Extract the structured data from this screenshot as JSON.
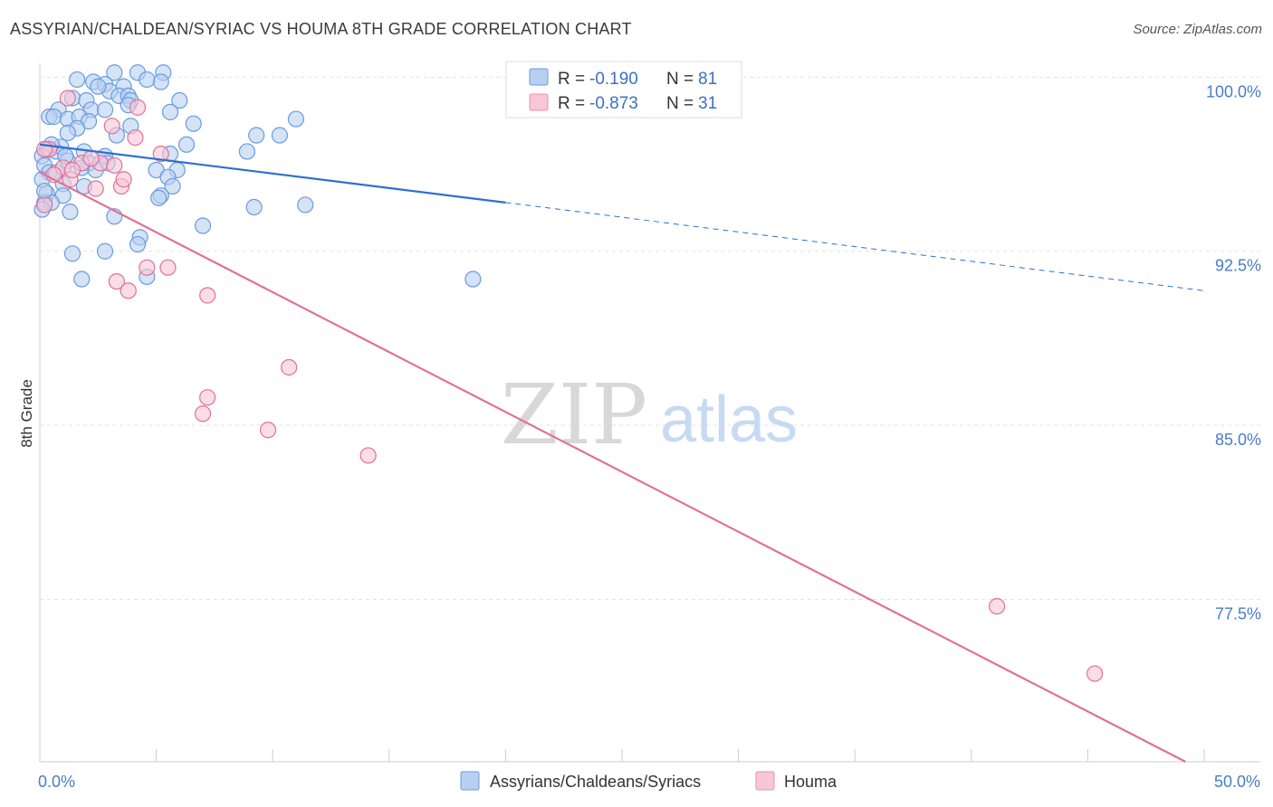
{
  "title": "ASSYRIAN/CHALDEAN/SYRIAC VS HOUMA 8TH GRADE CORRELATION CHART",
  "source": "Source: ZipAtlas.com",
  "watermark": {
    "zip": "ZIP",
    "atlas": "atlas"
  },
  "legend": {
    "rows": [
      {
        "r_label": "R =",
        "r_value": "-0.190",
        "n_label": "N =",
        "n_value": "81",
        "fill": "#b8d0f0",
        "stroke": "#6a9ae0"
      },
      {
        "r_label": "R =",
        "r_value": "-0.873",
        "n_label": "N =",
        "n_value": "31",
        "fill": "#f8c6d6",
        "stroke": "#e890b0"
      }
    ]
  },
  "bottom_legend": [
    {
      "label": "Assyrians/Chaldeans/Syriacs",
      "fill": "#b8d0f0",
      "stroke": "#6a9ae0"
    },
    {
      "label": "Houma",
      "fill": "#f8c6d6",
      "stroke": "#e890b0"
    }
  ],
  "chart_data": {
    "type": "scatter",
    "ylabel": "8th Grade",
    "xlim": [
      0,
      50
    ],
    "ylim": [
      70.5,
      100.6
    ],
    "x_tick_labels": [
      {
        "value": 0,
        "label": "0.0%"
      },
      {
        "value": 50,
        "label": "50.0%"
      }
    ],
    "y_tick_labels": [
      {
        "value": 100,
        "label": "100.0%"
      },
      {
        "value": 92.5,
        "label": "92.5%"
      },
      {
        "value": 85,
        "label": "85.0%"
      },
      {
        "value": 77.5,
        "label": "77.5%"
      }
    ],
    "series": [
      {
        "name": "Assyrians/Chaldeans/Syriacs",
        "color": "#6a9ae0",
        "fill": "#b8d0f0",
        "trend": {
          "x": [
            0,
            20,
            50
          ],
          "y": [
            97.1,
            94.6,
            90.8
          ],
          "solid_until": 20
        },
        "points": [
          [
            1.6,
            99.9
          ],
          [
            3.2,
            100.2
          ],
          [
            4.2,
            100.2
          ],
          [
            5.3,
            100.2
          ],
          [
            2.3,
            99.8
          ],
          [
            2.8,
            99.7
          ],
          [
            3.6,
            99.6
          ],
          [
            5.2,
            99.8
          ],
          [
            3.0,
            99.4
          ],
          [
            3.4,
            99.2
          ],
          [
            3.8,
            99.2
          ],
          [
            1.4,
            99.1
          ],
          [
            2.0,
            99.0
          ],
          [
            3.9,
            99.0
          ],
          [
            6.0,
            99.0
          ],
          [
            0.8,
            98.6
          ],
          [
            2.2,
            98.6
          ],
          [
            2.8,
            98.6
          ],
          [
            5.6,
            98.5
          ],
          [
            0.4,
            98.3
          ],
          [
            0.6,
            98.3
          ],
          [
            1.2,
            98.2
          ],
          [
            1.7,
            98.3
          ],
          [
            2.1,
            98.1
          ],
          [
            6.6,
            98.0
          ],
          [
            11.0,
            98.2
          ],
          [
            3.9,
            97.9
          ],
          [
            1.6,
            97.8
          ],
          [
            1.2,
            97.6
          ],
          [
            3.3,
            97.5
          ],
          [
            9.3,
            97.5
          ],
          [
            10.3,
            97.5
          ],
          [
            6.3,
            97.1
          ],
          [
            0.3,
            96.9
          ],
          [
            0.7,
            96.8
          ],
          [
            1.9,
            96.8
          ],
          [
            2.8,
            96.6
          ],
          [
            5.6,
            96.7
          ],
          [
            8.9,
            96.8
          ],
          [
            0.1,
            96.6
          ],
          [
            0.2,
            96.2
          ],
          [
            1.2,
            96.4
          ],
          [
            2.1,
            96.3
          ],
          [
            2.9,
            96.3
          ],
          [
            1.8,
            96.1
          ],
          [
            5.0,
            96.0
          ],
          [
            5.9,
            96.0
          ],
          [
            0.4,
            95.9
          ],
          [
            0.7,
            95.9
          ],
          [
            5.5,
            95.7
          ],
          [
            1.0,
            95.4
          ],
          [
            1.9,
            95.3
          ],
          [
            5.7,
            95.3
          ],
          [
            0.3,
            95.0
          ],
          [
            1.0,
            94.9
          ],
          [
            5.2,
            94.9
          ],
          [
            5.1,
            94.8
          ],
          [
            0.2,
            94.6
          ],
          [
            0.5,
            94.6
          ],
          [
            9.2,
            94.4
          ],
          [
            11.4,
            94.5
          ],
          [
            1.3,
            94.2
          ],
          [
            3.2,
            94.0
          ],
          [
            7.0,
            93.6
          ],
          [
            4.3,
            93.1
          ],
          [
            4.2,
            92.8
          ],
          [
            2.8,
            92.5
          ],
          [
            1.4,
            92.4
          ],
          [
            1.8,
            91.3
          ],
          [
            4.6,
            91.4
          ],
          [
            18.6,
            91.3
          ],
          [
            0.1,
            94.3
          ],
          [
            0.1,
            95.6
          ],
          [
            2.4,
            96.0
          ],
          [
            0.9,
            97.0
          ],
          [
            0.5,
            97.1
          ],
          [
            1.1,
            96.6
          ],
          [
            3.8,
            98.8
          ],
          [
            2.5,
            99.6
          ],
          [
            4.6,
            99.9
          ],
          [
            0.2,
            95.1
          ]
        ]
      },
      {
        "name": "Houma",
        "color": "#e07098",
        "fill": "#f8c6d6",
        "trend": {
          "x": [
            0,
            49.2
          ],
          "y": [
            95.9,
            70.5
          ],
          "solid_until": 49.2
        },
        "points": [
          [
            0.4,
            96.9
          ],
          [
            1.0,
            96.1
          ],
          [
            1.3,
            95.6
          ],
          [
            1.8,
            96.3
          ],
          [
            2.6,
            96.3
          ],
          [
            3.1,
            97.9
          ],
          [
            3.2,
            96.2
          ],
          [
            3.5,
            95.3
          ],
          [
            3.6,
            95.6
          ],
          [
            4.1,
            97.4
          ],
          [
            4.2,
            98.7
          ],
          [
            5.2,
            96.7
          ],
          [
            1.2,
            99.1
          ],
          [
            2.2,
            96.5
          ],
          [
            1.4,
            96.0
          ],
          [
            0.2,
            94.5
          ],
          [
            3.3,
            91.2
          ],
          [
            3.8,
            90.8
          ],
          [
            4.6,
            91.8
          ],
          [
            5.5,
            91.8
          ],
          [
            7.2,
            90.6
          ],
          [
            10.7,
            87.5
          ],
          [
            7.2,
            86.2
          ],
          [
            7.0,
            85.5
          ],
          [
            9.8,
            84.8
          ],
          [
            14.1,
            83.7
          ],
          [
            41.1,
            77.2
          ],
          [
            45.3,
            74.3
          ],
          [
            0.2,
            96.9
          ],
          [
            0.6,
            95.8
          ],
          [
            2.4,
            95.2
          ]
        ]
      }
    ]
  }
}
